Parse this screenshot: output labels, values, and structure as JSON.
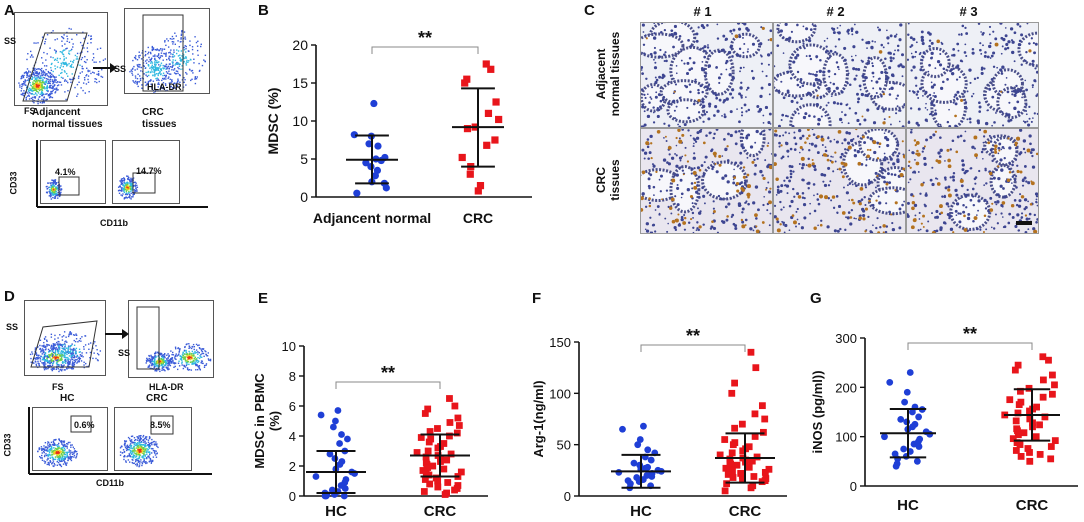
{
  "panels": {
    "A": {
      "label": "A",
      "ss1": "SS",
      "ss2": "SS",
      "fs": "FS",
      "hla": "HLA-DR",
      "group1": "Adjancent\nnormal tissues",
      "group2": "CRC\ntissues",
      "cd33": "CD33",
      "cd11b": "CD11b",
      "pct1": "4.1%",
      "pct2": "14.7%"
    },
    "C": {
      "label": "C",
      "cols": [
        "# 1",
        "# 2",
        "# 3"
      ],
      "row1": "Adjacent\nnormal tissues",
      "row2": "CRC\ntissues"
    },
    "D": {
      "label": "D",
      "ss1": "SS",
      "ss2": "SS",
      "fs": "FS",
      "hla": "HLA-DR",
      "group1": "HC",
      "group2": "CRC",
      "cd33": "CD33",
      "cd11b": "CD11b",
      "pct1": "0.6%",
      "pct2": "8.5%"
    }
  },
  "colors": {
    "group1": "#1f3fd6",
    "group2": "#e8151b",
    "axis": "#111111"
  },
  "chart_data": [
    {
      "id": "B",
      "label": "B",
      "type": "scatter",
      "ylabel": "MDSC (%)",
      "ylim": [
        0,
        20
      ],
      "yticks": [
        0,
        5,
        10,
        15,
        20
      ],
      "categories": [
        "Adjancent normal",
        "CRC"
      ],
      "significance": "**",
      "series": [
        {
          "name": "Adjancent normal",
          "mean": 4.9,
          "sd_low": 1.8,
          "sd_high": 8.1,
          "values": [
            12.3,
            8.2,
            8.0,
            7.0,
            6.7,
            5.2,
            5.0,
            4.8,
            4.5,
            4.0,
            3.5,
            2.8,
            2.0,
            1.8,
            1.2,
            0.5
          ]
        },
        {
          "name": "CRC",
          "mean": 9.2,
          "sd_low": 4.0,
          "sd_high": 14.3,
          "values": [
            17.5,
            16.8,
            15.5,
            15.0,
            12.5,
            11.0,
            10.2,
            9.2,
            9.0,
            7.5,
            6.8,
            5.2,
            4.0,
            3.0,
            1.5,
            0.8
          ]
        }
      ]
    },
    {
      "id": "E",
      "label": "E",
      "type": "scatter",
      "ylabel": "MDSC in PBMC\n(%)",
      "ylim": [
        0,
        10
      ],
      "yticks": [
        0,
        2,
        4,
        6,
        8,
        10
      ],
      "categories": [
        "HC",
        "CRC"
      ],
      "significance": "**",
      "series": [
        {
          "name": "HC",
          "mean": 1.6,
          "sd_low": 0.2,
          "sd_high": 3.0,
          "values": [
            5.7,
            5.4,
            5.0,
            4.6,
            4.1,
            3.8,
            3.5,
            3.0,
            2.8,
            2.5,
            2.3,
            2.1,
            1.8,
            1.6,
            1.5,
            1.3,
            1.1,
            0.9,
            0.7,
            0.5,
            0.4,
            0.3,
            0.2,
            0.1,
            0.1,
            0.0,
            0.0,
            0.0
          ]
        },
        {
          "name": "CRC",
          "mean": 2.7,
          "sd_low": 1.3,
          "sd_high": 4.1,
          "values": [
            6.5,
            6.0,
            5.8,
            5.5,
            5.2,
            4.9,
            4.7,
            4.5,
            4.3,
            4.2,
            4.0,
            3.9,
            3.8,
            3.6,
            3.5,
            3.3,
            3.2,
            3.0,
            2.9,
            2.8,
            2.7,
            2.6,
            2.5,
            2.4,
            2.3,
            2.2,
            2.1,
            2.0,
            1.9,
            1.8,
            1.7,
            1.6,
            1.5,
            1.4,
            1.3,
            1.2,
            1.1,
            1.0,
            0.9,
            0.8,
            0.7,
            0.6,
            0.5,
            0.4,
            0.3,
            0.2,
            0.1
          ]
        }
      ]
    },
    {
      "id": "F",
      "label": "F",
      "type": "scatter",
      "ylabel": "Arg-1(ng/ml)",
      "ylim": [
        0,
        150
      ],
      "yticks": [
        0,
        50,
        100,
        150
      ],
      "categories": [
        "HC",
        "CRC"
      ],
      "significance": "**",
      "series": [
        {
          "name": "HC",
          "mean": 24,
          "sd_low": 8,
          "sd_high": 40,
          "values": [
            68,
            65,
            55,
            50,
            45,
            42,
            38,
            35,
            32,
            30,
            28,
            27,
            26,
            25,
            24,
            23,
            22,
            21,
            20,
            19,
            18,
            16,
            15,
            14,
            12,
            10,
            8
          ]
        },
        {
          "name": "CRC",
          "mean": 37,
          "sd_low": 13,
          "sd_high": 61,
          "values": [
            140,
            125,
            110,
            100,
            88,
            80,
            75,
            70,
            66,
            62,
            58,
            55,
            52,
            50,
            48,
            46,
            44,
            42,
            40,
            38,
            37,
            36,
            35,
            34,
            33,
            32,
            31,
            30,
            29,
            28,
            27,
            26,
            25,
            24,
            23,
            22,
            21,
            20,
            19,
            18,
            17,
            16,
            15,
            14,
            12,
            10,
            8,
            5
          ]
        }
      ]
    },
    {
      "id": "G",
      "label": "G",
      "type": "scatter",
      "ylabel": "iNOS (pg/ml))",
      "ylim": [
        0,
        300
      ],
      "yticks": [
        0,
        100,
        200,
        300
      ],
      "categories": [
        "HC",
        "CRC"
      ],
      "significance": "**",
      "series": [
        {
          "name": "HC",
          "mean": 107,
          "sd_low": 58,
          "sd_high": 156,
          "values": [
            230,
            210,
            190,
            170,
            160,
            155,
            150,
            140,
            135,
            130,
            125,
            120,
            115,
            110,
            105,
            100,
            95,
            90,
            85,
            80,
            75,
            70,
            65,
            60,
            55,
            50,
            45,
            40
          ]
        },
        {
          "name": "CRC",
          "mean": 144,
          "sd_low": 92,
          "sd_high": 196,
          "values": [
            262,
            255,
            245,
            235,
            225,
            215,
            205,
            198,
            192,
            186,
            180,
            175,
            170,
            165,
            160,
            156,
            152,
            148,
            144,
            140,
            136,
            132,
            128,
            124,
            120,
            116,
            112,
            108,
            104,
            100,
            96,
            92,
            88,
            84,
            80,
            76,
            72,
            68,
            64,
            60,
            55,
            50
          ]
        }
      ]
    }
  ]
}
